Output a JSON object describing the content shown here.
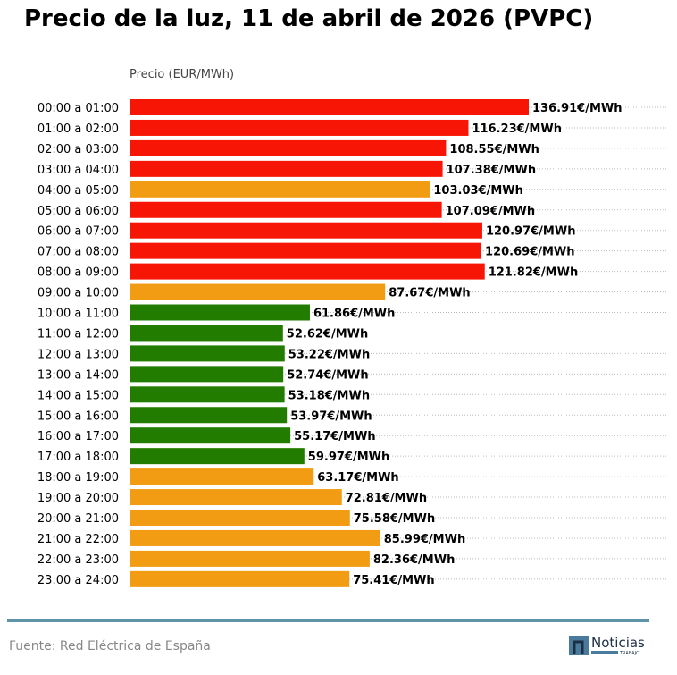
{
  "title": "Precio de la luz, 11 de abril de 2026 (PVPC)",
  "source": "Fuente: Red Eléctrica de España",
  "logo": {
    "text": "Noticias",
    "subtext": "TRABAJO"
  },
  "colors": {
    "high": "#f71505",
    "medium": "#f29c13",
    "low": "#217c00",
    "grid": "#bbbbbb",
    "footer_line": "#5e93a8"
  },
  "chart_data": {
    "type": "bar",
    "orientation": "horizontal",
    "xlabel": "Precio (EUR/MWh)",
    "unit_suffix": "€/MWh",
    "grid": "horizontal dotted",
    "xlim": [
      0,
      140
    ],
    "categories": [
      "00:00 a 01:00",
      "01:00 a 02:00",
      "02:00 a 03:00",
      "03:00 a 04:00",
      "04:00 a 05:00",
      "05:00 a 06:00",
      "06:00 a 07:00",
      "07:00 a 08:00",
      "08:00 a 09:00",
      "09:00 a 10:00",
      "10:00 a 11:00",
      "11:00 a 12:00",
      "12:00 a 13:00",
      "13:00 a 14:00",
      "14:00 a 15:00",
      "15:00 a 16:00",
      "16:00 a 17:00",
      "17:00 a 18:00",
      "18:00 a 19:00",
      "19:00 a 20:00",
      "20:00 a 21:00",
      "21:00 a 22:00",
      "22:00 a 23:00",
      "23:00 a 24:00"
    ],
    "values": [
      136.91,
      116.23,
      108.55,
      107.38,
      103.03,
      107.09,
      120.97,
      120.69,
      121.82,
      87.67,
      61.86,
      52.62,
      53.22,
      52.74,
      53.18,
      53.97,
      55.17,
      59.97,
      63.17,
      72.81,
      75.58,
      85.99,
      82.36,
      75.41
    ],
    "levels": [
      "high",
      "high",
      "high",
      "high",
      "medium",
      "high",
      "high",
      "high",
      "high",
      "medium",
      "low",
      "low",
      "low",
      "low",
      "low",
      "low",
      "low",
      "low",
      "medium",
      "medium",
      "medium",
      "medium",
      "medium",
      "medium"
    ],
    "data_labels": [
      "136.91€/MWh",
      "116.23€/MWh",
      "108.55€/MWh",
      "107.38€/MWh",
      "103.03€/MWh",
      "107.09€/MWh",
      "120.97€/MWh",
      "120.69€/MWh",
      "121.82€/MWh",
      "87.67€/MWh",
      "61.86€/MWh",
      "52.62€/MWh",
      "53.22€/MWh",
      "52.74€/MWh",
      "53.18€/MWh",
      "53.97€/MWh",
      "55.17€/MWh",
      "59.97€/MWh",
      "63.17€/MWh",
      "72.81€/MWh",
      "75.58€/MWh",
      "85.99€/MWh",
      "82.36€/MWh",
      "75.41€/MWh"
    ]
  }
}
